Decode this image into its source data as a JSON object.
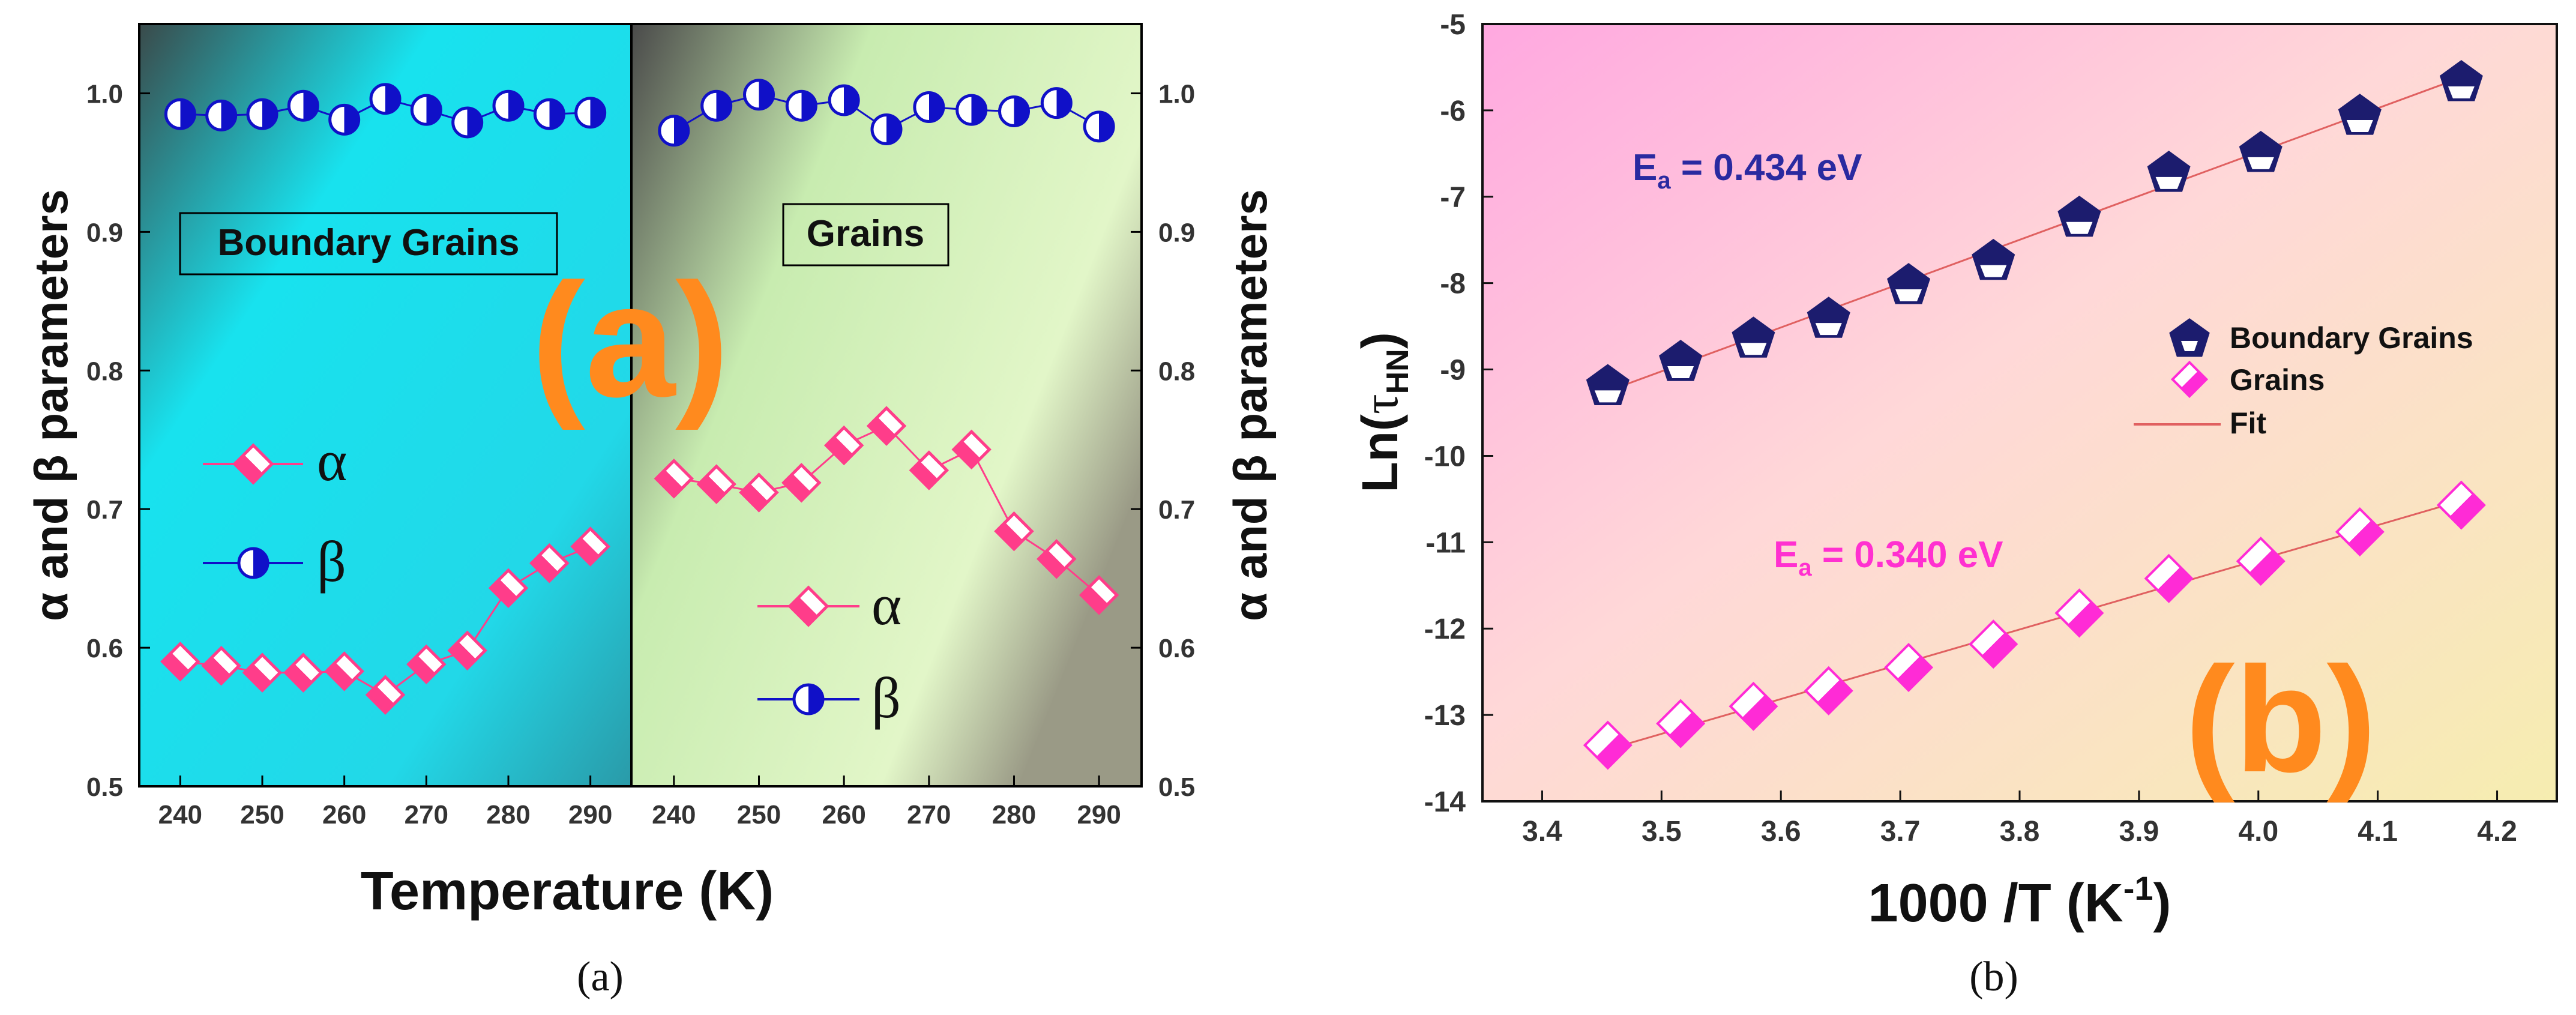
{
  "chart_data": [
    {
      "type": "scatter",
      "panel": "(a)",
      "caption": "(a)",
      "watermark": "(a)",
      "xlabel": "Temperature (K)",
      "ylabel": "α and β parameters",
      "xlim": [
        235,
        295
      ],
      "ylim": [
        0.5,
        1.05
      ],
      "xticks": [
        "240",
        "250",
        "260",
        "270",
        "280",
        "290"
      ],
      "yticks": [
        "0.5",
        "0.6",
        "0.7",
        "0.8",
        "0.9",
        "1.0"
      ],
      "left_panel": {
        "title": "Boundary Grains",
        "x": [
          240,
          245,
          250,
          255,
          260,
          265,
          270,
          275,
          280,
          285,
          290
        ],
        "series": [
          {
            "name": "α",
            "values": [
              0.59,
              0.587,
              0.582,
              0.582,
              0.583,
              0.566,
              0.588,
              0.598,
              0.643,
              0.661,
              0.673
            ]
          },
          {
            "name": "β",
            "values": [
              0.985,
              0.984,
              0.985,
              0.991,
              0.981,
              0.996,
              0.988,
              0.979,
              0.991,
              0.985,
              0.986
            ]
          }
        ]
      },
      "right_panel": {
        "title": "Grains",
        "x": [
          240,
          245,
          250,
          255,
          260,
          265,
          270,
          275,
          280,
          285,
          290
        ],
        "series": [
          {
            "name": "α",
            "values": [
              0.722,
              0.718,
              0.712,
              0.719,
              0.746,
              0.76,
              0.728,
              0.743,
              0.684,
              0.664,
              0.638
            ]
          },
          {
            "name": "β",
            "values": [
              0.973,
              0.991,
              0.999,
              0.991,
              0.995,
              0.974,
              0.99,
              0.988,
              0.987,
              0.993,
              0.976
            ]
          }
        ]
      },
      "colors": {
        "alpha": "#ff3d8a",
        "beta": "#1010c8",
        "left_bg": "#1fe0ee",
        "right_bg": "#d4f0a8"
      }
    },
    {
      "type": "scatter",
      "panel": "(b)",
      "caption": "(b)",
      "watermark": "(b)",
      "xlabel_main": "1000 /T (K",
      "xlabel_sup": "-1",
      "xlabel_end": ")",
      "ylabel_main": "Ln(",
      "ylabel_sym": "τ",
      "ylabel_sub": "HN",
      "ylabel_end": ")",
      "xlim": [
        3.35,
        4.25
      ],
      "ylim": [
        -14,
        -5
      ],
      "xticks": [
        "3.4",
        "3.5",
        "3.6",
        "3.7",
        "3.8",
        "3.9",
        "4.0",
        "4.1",
        "4.2"
      ],
      "yticks": [
        "-14",
        "-13",
        "-12",
        "-11",
        "-10",
        "-9",
        "-8",
        "-7",
        "-6",
        "-5"
      ],
      "x": [
        3.455,
        3.516,
        3.577,
        3.64,
        3.707,
        3.778,
        3.85,
        3.925,
        4.002,
        4.085,
        4.17
      ],
      "series": [
        {
          "name": "Boundary Grains",
          "values": [
            -9.2,
            -8.92,
            -8.65,
            -8.42,
            -8.03,
            -7.75,
            -7.25,
            -6.73,
            -6.5,
            -6.07,
            -5.68
          ]
        },
        {
          "name": "Grains",
          "values": [
            -13.35,
            -13.1,
            -12.9,
            -12.72,
            -12.45,
            -12.18,
            -11.82,
            -11.42,
            -11.22,
            -10.88,
            -10.57
          ]
        }
      ],
      "fits": [
        {
          "name": "Fit",
          "series": "Boundary Grains",
          "from": [
            3.455,
            -9.25
          ],
          "to": [
            4.17,
            -5.62
          ]
        },
        {
          "name": "Fit",
          "series": "Grains",
          "from": [
            3.455,
            -13.4
          ],
          "to": [
            4.17,
            -10.52
          ]
        }
      ],
      "legend": [
        "Boundary Grains",
        "Grains",
        "Fit"
      ],
      "annotations": [
        {
          "label": "E",
          "sub": "a",
          "value": " = 0.434 eV"
        },
        {
          "label": "E",
          "sub": "a",
          "value": " = 0.340 eV"
        }
      ],
      "colors": {
        "boundary": "#1c1c6e",
        "grains": "#ff2bd6",
        "fit": "#e06060",
        "label_boundary": "#2a2aa0",
        "label_grains": "#ff30d0",
        "watermark": "#ff8a1e"
      }
    }
  ]
}
